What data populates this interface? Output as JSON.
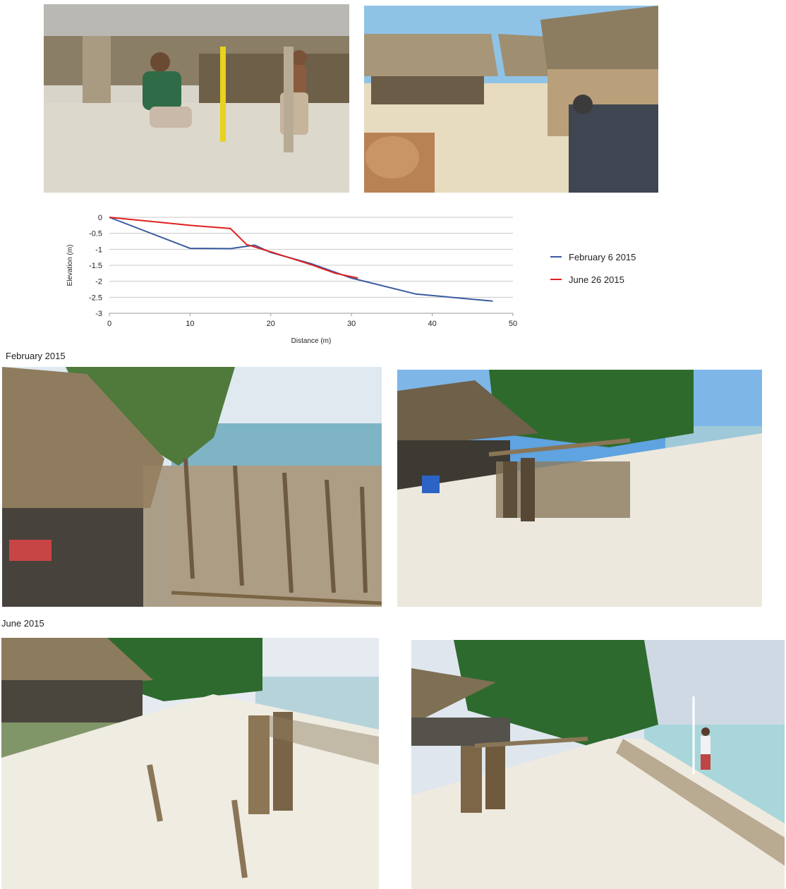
{
  "captions": {
    "february": "February 2015",
    "june": "June  2015"
  },
  "photos": [
    {
      "name": "photo-man-with-measuring-pole",
      "subject": "person crouching beside yellow measuring pole under thatched shelter, child standing nearby"
    },
    {
      "name": "photo-thatched-huts-coconut-husks",
      "subject": "thatched huts with coconut husk pile and man in cap"
    },
    {
      "name": "photo-feb-hut-fence-left",
      "subject": "thatched hut and wooden stake fence along shoreline"
    },
    {
      "name": "photo-feb-beach-fence-right",
      "subject": "beach with wooden log fence and palm trees"
    },
    {
      "name": "photo-june-beach-stakes-left",
      "subject": "beach with wooden stakes and hut, seaweed line"
    },
    {
      "name": "photo-june-beach-person-right",
      "subject": "beach with palm trees, log fence, person holding survey pole in water"
    }
  ],
  "chart_data": {
    "type": "line",
    "title": "",
    "xlabel": "Distance (m)",
    "ylabel": "Elevation (m)",
    "xlim": [
      0,
      50
    ],
    "ylim": [
      -3,
      0
    ],
    "xticks": [
      "0",
      "10",
      "20",
      "30",
      "40",
      "50"
    ],
    "yticks": [
      "0",
      "-0.5",
      "-1",
      "-1.5",
      "-2",
      "-2.5",
      "-3"
    ],
    "grid": true,
    "legend_position": "right",
    "series": [
      {
        "name": "February 6 2015",
        "color": "#3b5ba0",
        "x": [
          0,
          10,
          15,
          18,
          20,
          25,
          30,
          38,
          47.5
        ],
        "y": [
          0,
          -0.97,
          -0.98,
          -0.87,
          -1.1,
          -1.45,
          -1.9,
          -2.4,
          -2.62
        ]
      },
      {
        "name": "June 26 2015",
        "color": "#e02020",
        "x": [
          0,
          10,
          15,
          17,
          20,
          25,
          28,
          30.8
        ],
        "y": [
          0,
          -0.25,
          -0.35,
          -0.85,
          -1.08,
          -1.48,
          -1.75,
          -1.9
        ]
      }
    ]
  }
}
